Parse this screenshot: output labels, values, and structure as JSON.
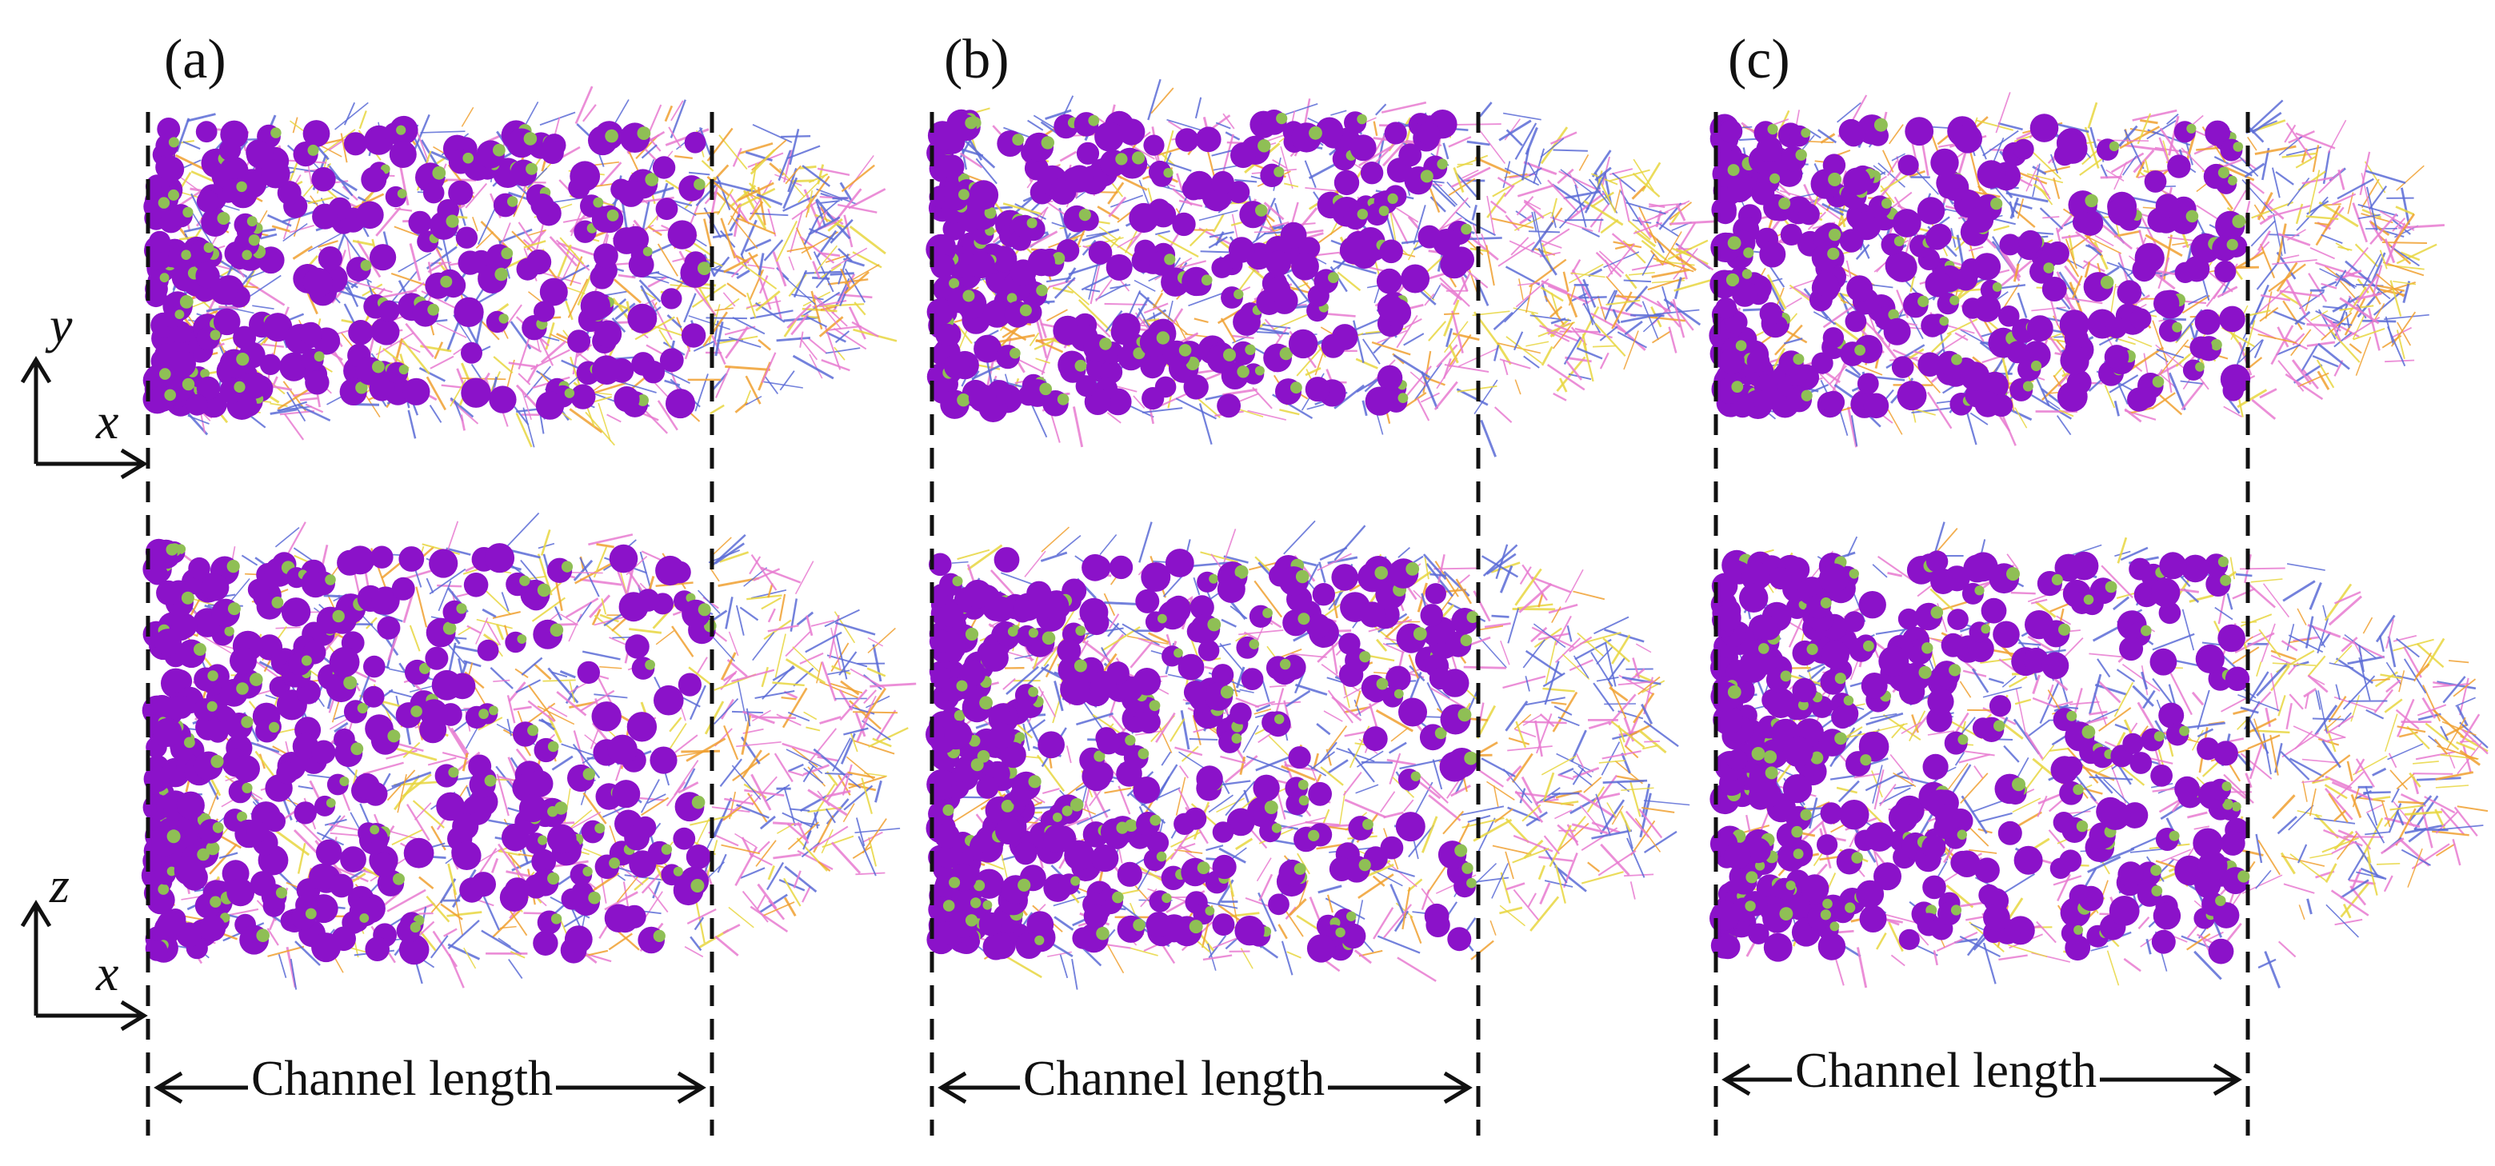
{
  "panels": [
    {
      "label": "(a)",
      "caption": "Channel length"
    },
    {
      "label": "(b)",
      "caption": "Channel length"
    },
    {
      "label": "(c)",
      "caption": "Channel length"
    }
  ],
  "axes": {
    "top": {
      "vertical": "y",
      "horizontal": "x"
    },
    "bottom": {
      "vertical": "z",
      "horizontal": "x"
    }
  },
  "colors": {
    "ion_purple": "#8b12c9",
    "ion_green": "#8fbf55",
    "chain_blue": "#5a6bd6",
    "chain_pink": "#e77ad0",
    "chain_orange": "#f0a030",
    "chain_yellow": "#e8d640"
  }
}
